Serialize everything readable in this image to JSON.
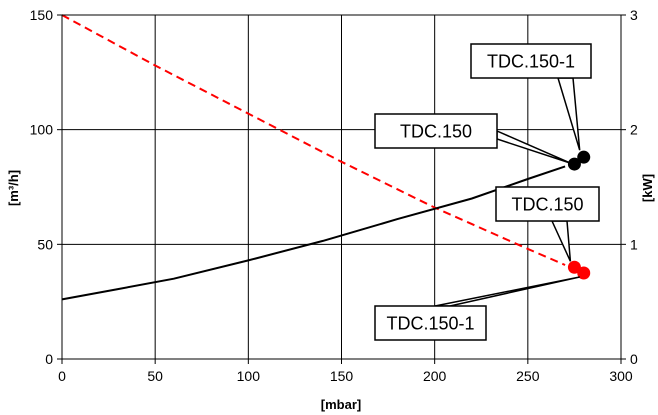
{
  "chart_data": {
    "type": "line",
    "x": {
      "label": "[mbar]",
      "range": [
        0,
        300
      ],
      "ticks": [
        "0",
        "50",
        "100",
        "150",
        "200",
        "250",
        "300"
      ]
    },
    "y_left": {
      "label": "[m³/h]",
      "range": [
        0,
        150
      ],
      "ticks": [
        "0",
        "50",
        "100",
        "150"
      ]
    },
    "y_right": {
      "label": "[kW]",
      "range": [
        0,
        3
      ],
      "ticks": [
        "0",
        "1",
        "2",
        "3"
      ]
    },
    "grid": true,
    "legend": "none",
    "series": [
      {
        "axis": "left",
        "style": "dashed",
        "color": "#ff0000",
        "points": [
          [
            0,
            150
          ],
          [
            50,
            128
          ],
          [
            100,
            107
          ],
          [
            150,
            86
          ],
          [
            200,
            66
          ],
          [
            250,
            48
          ],
          [
            270,
            41
          ]
        ]
      },
      {
        "axis": "right",
        "style": "solid",
        "color": "#000000",
        "points": [
          [
            0,
            0.52
          ],
          [
            30,
            0.61
          ],
          [
            60,
            0.7
          ],
          [
            100,
            0.86
          ],
          [
            140,
            1.03
          ],
          [
            180,
            1.22
          ],
          [
            220,
            1.4
          ],
          [
            250,
            1.57
          ],
          [
            270,
            1.68
          ]
        ]
      }
    ],
    "markers": [
      {
        "label": "TDC.150",
        "x": 275,
        "y": 85,
        "axis": "left",
        "color": "#000000"
      },
      {
        "label": "TDC.150-1",
        "x": 280,
        "y": 88,
        "axis": "left",
        "color": "#000000"
      },
      {
        "label": "TDC.150",
        "x": 275,
        "y": 40,
        "axis": "left",
        "color": "#ff0000"
      },
      {
        "label": "TDC.150-1",
        "x": 280,
        "y": 37.5,
        "axis": "left",
        "color": "#ff0000"
      }
    ],
    "annotations": [
      {
        "text": "TDC.150-1",
        "target": 1
      },
      {
        "text": "TDC.150",
        "target": 0
      },
      {
        "text": "TDC.150",
        "target": 2
      },
      {
        "text": "TDC.150-1",
        "target": 3
      }
    ]
  }
}
